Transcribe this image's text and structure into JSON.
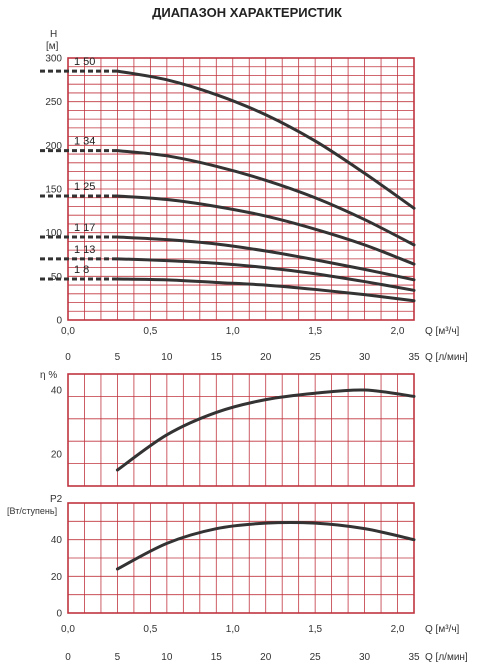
{
  "title": "ДИАПАЗОН ХАРАКТЕРИСТИК",
  "colors": {
    "grid": "#c0343f",
    "curve": "#333333"
  },
  "chart_data": [
    {
      "type": "line",
      "id": "head",
      "ylabel": "H",
      "yunit": "[м]",
      "xlabel_m3h": "Q [м³/ч]",
      "xlabel_lmin": "Q [л/мин]",
      "xlim": [
        0,
        2.1
      ],
      "ylim": [
        0,
        300
      ],
      "yticks": [
        "0",
        "50",
        "100",
        "150",
        "200",
        "250",
        "300"
      ],
      "xticks_m3h": [
        "0,0",
        "0,5",
        "1,0",
        "1,5",
        "2,0"
      ],
      "xticks_lmin": [
        "0",
        "5",
        "10",
        "15",
        "20",
        "25",
        "30",
        "35"
      ],
      "grid": true,
      "series": [
        {
          "name": "1 50",
          "x": [
            0.3,
            0.6,
            0.9,
            1.2,
            1.5,
            1.8,
            2.1
          ],
          "y": [
            285,
            275,
            258,
            235,
            205,
            168,
            128
          ]
        },
        {
          "name": "1 34",
          "x": [
            0.3,
            0.6,
            0.9,
            1.2,
            1.5,
            1.8,
            2.1
          ],
          "y": [
            194,
            188,
            176,
            160,
            140,
            115,
            86
          ]
        },
        {
          "name": "1 25",
          "x": [
            0.3,
            0.6,
            0.9,
            1.2,
            1.5,
            1.8,
            2.1
          ],
          "y": [
            142,
            138,
            130,
            119,
            104,
            86,
            64
          ]
        },
        {
          "name": "1 17",
          "x": [
            0.3,
            0.6,
            0.9,
            1.2,
            1.5,
            1.8,
            2.1
          ],
          "y": [
            95,
            92,
            87,
            79,
            69,
            58,
            46
          ]
        },
        {
          "name": "1 13",
          "x": [
            0.3,
            0.6,
            0.9,
            1.2,
            1.5,
            1.8,
            2.1
          ],
          "y": [
            70,
            68,
            65,
            60,
            53,
            44,
            34
          ]
        },
        {
          "name": "1 8",
          "x": [
            0.3,
            0.6,
            0.9,
            1.2,
            1.5,
            1.8,
            2.1
          ],
          "y": [
            47,
            46,
            43,
            40,
            35,
            29,
            22
          ]
        }
      ]
    },
    {
      "type": "line",
      "id": "efficiency",
      "ylabel": "η %",
      "xlim": [
        0,
        2.1
      ],
      "ylim": [
        10,
        45
      ],
      "yticks": [
        "20",
        "40"
      ],
      "grid": true,
      "series": [
        {
          "x": [
            0.3,
            0.6,
            0.9,
            1.2,
            1.5,
            1.8,
            2.1
          ],
          "y": [
            15,
            26,
            33,
            37,
            39,
            40,
            38
          ]
        }
      ]
    },
    {
      "type": "line",
      "id": "power",
      "ylabel": "P2",
      "yunit": "[Вт/ступень]",
      "xlabel_m3h": "Q [м³/ч]",
      "xlabel_lmin": "Q [л/мин]",
      "xlim": [
        0,
        2.1
      ],
      "ylim": [
        0,
        60
      ],
      "yticks": [
        "0",
        "20",
        "40"
      ],
      "xticks_m3h": [
        "0,0",
        "0,5",
        "1,0",
        "1,5",
        "2,0"
      ],
      "xticks_lmin": [
        "0",
        "5",
        "10",
        "15",
        "20",
        "25",
        "30",
        "35"
      ],
      "grid": true,
      "series": [
        {
          "x": [
            0.3,
            0.6,
            0.9,
            1.2,
            1.5,
            1.8,
            2.1
          ],
          "y": [
            24,
            38,
            46,
            49,
            49,
            46,
            40
          ]
        }
      ]
    }
  ]
}
